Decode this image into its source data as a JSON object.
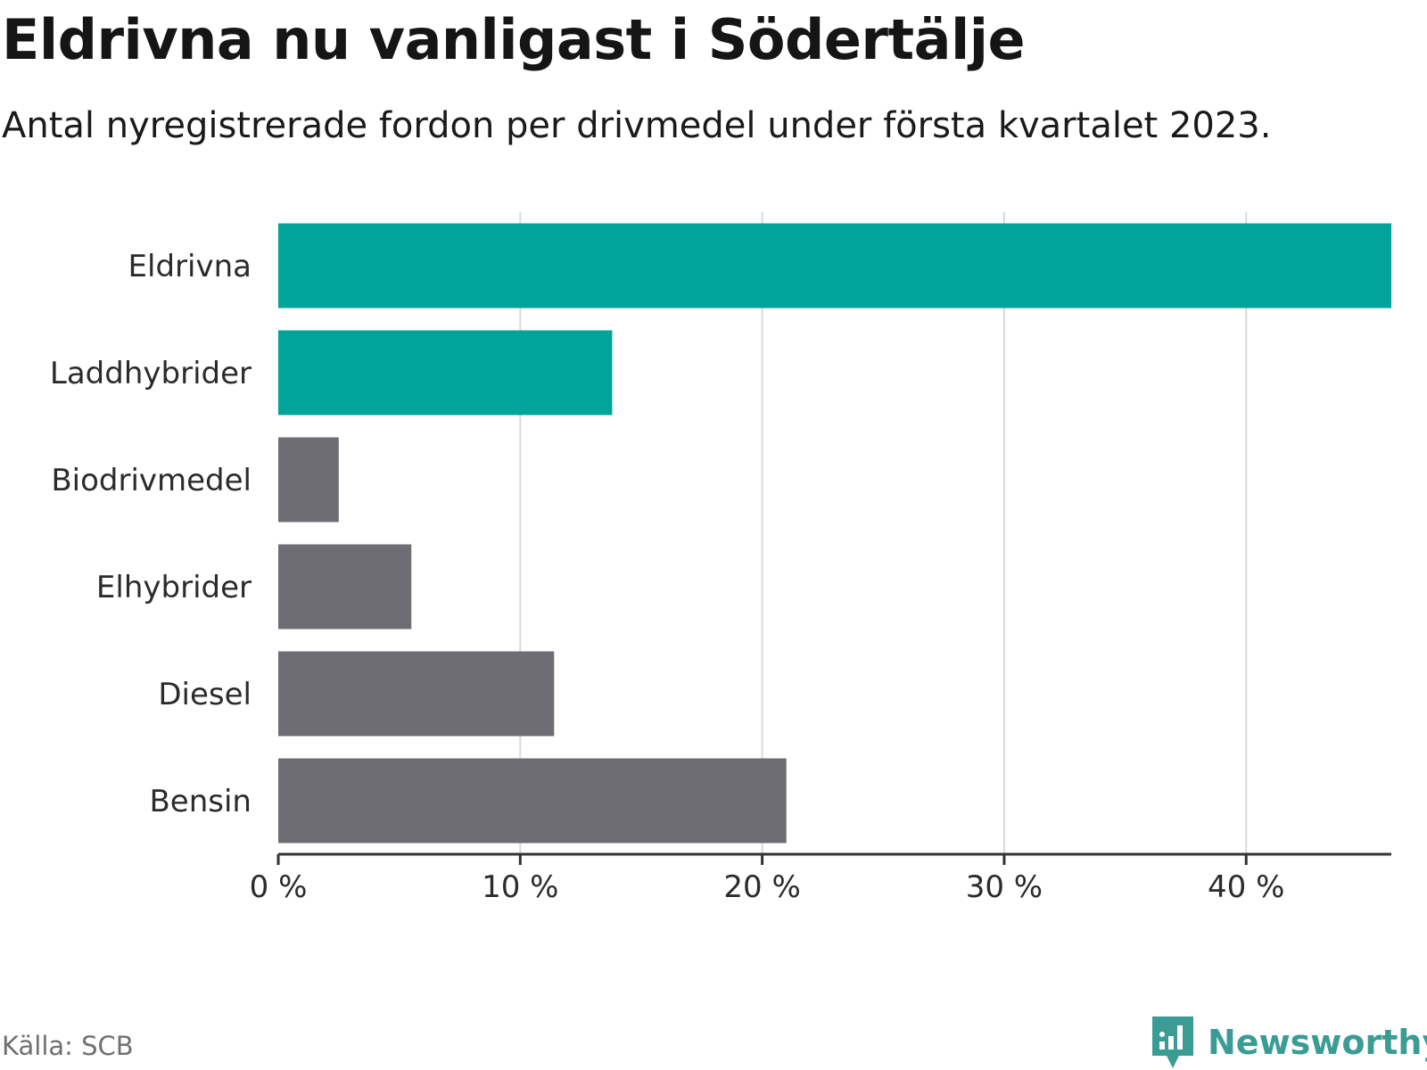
{
  "title": "Eldrivna nu vanligast i Södertälje",
  "subtitle": "Antal nyregistrerade fordon per drivmedel under första kvartalet 2023.",
  "source": "Källa: SCB",
  "brand": "Newsworthy",
  "colors": {
    "highlight": "#00a499",
    "other": "#6e6d73",
    "grid": "#d9d9d9",
    "axis": "#333333",
    "brand": "#3a9c94"
  },
  "chart_data": {
    "type": "bar",
    "orientation": "horizontal",
    "title": "Eldrivna nu vanligast i Södertälje",
    "subtitle": "Antal nyregistrerade fordon per drivmedel under första kvartalet 2023.",
    "xlabel": "",
    "ylabel": "",
    "categories": [
      "Eldrivna",
      "Laddhybrider",
      "Biodrivmedel",
      "Elhybrider",
      "Diesel",
      "Bensin"
    ],
    "values": [
      46.0,
      13.8,
      2.5,
      5.5,
      11.4,
      21.0
    ],
    "highlighted": [
      true,
      true,
      false,
      false,
      false,
      false
    ],
    "xlim": [
      0,
      46
    ],
    "ticks": [
      0,
      10,
      20,
      30,
      40
    ],
    "tick_labels": [
      "0 %",
      "10 %",
      "20 %",
      "30 %",
      "40 %"
    ],
    "unit": "%",
    "grid": true
  }
}
